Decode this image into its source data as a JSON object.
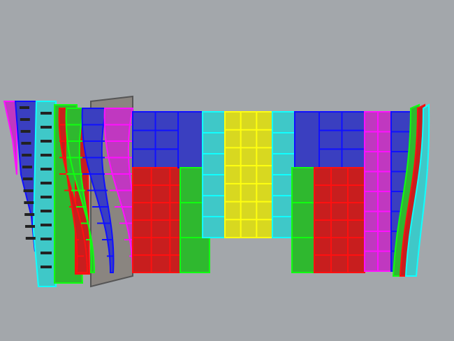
{
  "viewport": {
    "background": "#a3a7ab"
  },
  "palette": {
    "blue": "#3a3fc0",
    "blue_edge": "#1010ff",
    "red": "#c81e1e",
    "red_edge": "#ff1010",
    "green": "#2fb82f",
    "green_edge": "#10ff10",
    "cyan": "#3fc8c8",
    "cyan_edge": "#10ffff",
    "yellow": "#d8d820",
    "yellow_edge": "#ffff10",
    "magenta": "#c038c0",
    "magenta_edge": "#ff10ff",
    "back": "#8a8580"
  }
}
